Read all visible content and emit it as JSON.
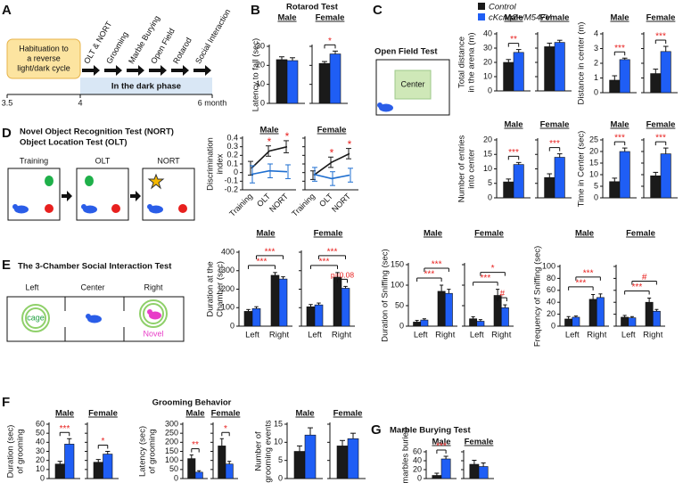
{
  "legend": {
    "series": [
      {
        "name": "Control",
        "color": "#1a1a1a"
      },
      {
        "name": "cKcnq2+/M547V",
        "color": "#1f5ef5"
      }
    ]
  },
  "diagrams": {
    "A": {
      "letter": "A",
      "habituation": [
        "Habituation to",
        "a reverse",
        "light/dark cycle"
      ],
      "tests": [
        "OLT & NORT",
        "Grooming",
        "Marble Burying",
        "Open Field",
        "Rotarod",
        "Social Interaction"
      ],
      "phase": "In the dark phase",
      "timeline": [
        "3.5",
        "4",
        "6 month"
      ]
    },
    "B": {
      "letter": "B"
    },
    "C": {
      "letter": "C",
      "title": "Open Field Test",
      "zone": "Center"
    },
    "D": {
      "letter": "D",
      "title": [
        "Novel Object Recognition Test (NORT)",
        "Object Location Test (OLT)"
      ],
      "stages": [
        "Training",
        "OLT",
        "NORT"
      ]
    },
    "E": {
      "letter": "E",
      "title": "The 3-Chamber Social Interaction Test",
      "chambers": [
        "Left",
        "Center",
        "Right"
      ],
      "cage": "cage",
      "novel": "Novel"
    },
    "F": {
      "letter": "F",
      "title": "Grooming Behavior"
    },
    "G": {
      "letter": "G"
    }
  },
  "chart_data": [
    {
      "type": "bar",
      "title": "Rotarod Test",
      "y_label": [
        "Latency to fall (sec)"
      ],
      "ylim": [
        0,
        30
      ],
      "yticks": [
        0,
        10,
        20,
        30
      ],
      "facets": [
        {
          "label": "Male",
          "series": [
            {
              "values": [
                23
              ],
              "errors": [
                1.5
              ]
            },
            {
              "values": [
                22.5
              ],
              "errors": [
                1.5
              ]
            }
          ],
          "annotations": []
        },
        {
          "label": "Female",
          "series": [
            {
              "values": [
                21
              ],
              "errors": [
                1
              ]
            },
            {
              "values": [
                26
              ],
              "errors": [
                1.5
              ]
            }
          ],
          "annotations": [
            "*"
          ]
        }
      ]
    },
    {
      "type": "bar",
      "y_label": [
        "Total distance",
        "in the arena (m)"
      ],
      "ylim": [
        0,
        40
      ],
      "yticks": [
        0,
        10,
        20,
        30,
        40
      ],
      "facets": [
        {
          "label": "Male",
          "series": [
            {
              "values": [
                20
              ],
              "errors": [
                2
              ]
            },
            {
              "values": [
                27
              ],
              "errors": [
                2
              ]
            }
          ],
          "annotations": [
            "**"
          ]
        },
        {
          "label": "Female",
          "series": [
            {
              "values": [
                31
              ],
              "errors": [
                2.5
              ]
            },
            {
              "values": [
                34
              ],
              "errors": [
                1.5
              ]
            }
          ],
          "annotations": []
        }
      ]
    },
    {
      "type": "bar",
      "y_label": [
        "Distance in center (m)"
      ],
      "ylim": [
        0,
        4
      ],
      "yticks": [
        0,
        1,
        2,
        3,
        4
      ],
      "facets": [
        {
          "label": "Male",
          "series": [
            {
              "values": [
                0.85
              ],
              "errors": [
                0.3
              ]
            },
            {
              "values": [
                2.25
              ],
              "errors": [
                0.1
              ]
            }
          ],
          "annotations": [
            "***"
          ]
        },
        {
          "label": "Female",
          "series": [
            {
              "values": [
                1.3
              ],
              "errors": [
                0.3
              ]
            },
            {
              "values": [
                2.8
              ],
              "errors": [
                0.35
              ]
            }
          ],
          "annotations": [
            "***"
          ]
        }
      ]
    },
    {
      "type": "bar",
      "y_label": [
        "Number of entries",
        "into center"
      ],
      "ylim": [
        0,
        20
      ],
      "yticks": [
        0,
        5,
        10,
        15,
        20
      ],
      "facets": [
        {
          "label": "Male",
          "series": [
            {
              "values": [
                5.5
              ],
              "errors": [
                1
              ]
            },
            {
              "values": [
                11.5
              ],
              "errors": [
                0.7
              ]
            }
          ],
          "annotations": [
            "***"
          ]
        },
        {
          "label": "Female",
          "series": [
            {
              "values": [
                7
              ],
              "errors": [
                1.3
              ]
            },
            {
              "values": [
                14
              ],
              "errors": [
                1.2
              ]
            }
          ],
          "annotations": [
            "***"
          ]
        }
      ]
    },
    {
      "type": "bar",
      "y_label": [
        "Time in Center (sec)"
      ],
      "ylim": [
        0,
        25
      ],
      "yticks": [
        0,
        5,
        10,
        15,
        20,
        25
      ],
      "facets": [
        {
          "label": "Male",
          "series": [
            {
              "values": [
                7
              ],
              "errors": [
                1.5
              ]
            },
            {
              "values": [
                20
              ],
              "errors": [
                1.5
              ]
            }
          ],
          "annotations": [
            "***"
          ]
        },
        {
          "label": "Female",
          "series": [
            {
              "values": [
                9.5
              ],
              "errors": [
                1.5
              ]
            },
            {
              "values": [
                19
              ],
              "errors": [
                2.5
              ]
            }
          ],
          "annotations": [
            "***"
          ]
        }
      ]
    },
    {
      "type": "line",
      "y_label": [
        "Discrimination",
        "index"
      ],
      "ylim": [
        -0.2,
        0.4
      ],
      "yticks": [
        -0.2,
        -0.1,
        0,
        0.1,
        0.2,
        0.3,
        0.4
      ],
      "facets": [
        {
          "label": "Male",
          "categories": [
            "Training",
            "OLT",
            "NORT"
          ],
          "series": [
            {
              "values": [
                0.05,
                0.25,
                0.3
              ],
              "errors": [
                0.08,
                0.06,
                0.07
              ]
            },
            {
              "values": [
                -0.02,
                0.02,
                0.01
              ],
              "errors": [
                0.1,
                0.08,
                0.08
              ]
            }
          ],
          "annotations": [
            "*",
            "*"
          ]
        },
        {
          "label": "Female",
          "categories": [
            "Training",
            "OLT",
            "NORT"
          ],
          "series": [
            {
              "values": [
                -0.03,
                0.12,
                0.22
              ],
              "errors": [
                0.05,
                0.06,
                0.06
              ]
            },
            {
              "values": [
                -0.02,
                -0.07,
                -0.03
              ],
              "errors": [
                0.08,
                0.08,
                0.08
              ]
            }
          ],
          "annotations": [
            "*",
            "*"
          ]
        }
      ]
    },
    {
      "type": "bar",
      "y_label": [
        "Duration at the",
        "Chamber (sec)"
      ],
      "ylim": [
        0,
        400
      ],
      "yticks": [
        0,
        100,
        200,
        300,
        400
      ],
      "facets": [
        {
          "label": "Male",
          "categories": [
            "Left",
            "Right"
          ],
          "series": [
            {
              "values": [
                80,
                275
              ],
              "errors": [
                10,
                15
              ]
            },
            {
              "values": [
                95,
                255
              ],
              "errors": [
                10,
                12
              ]
            }
          ],
          "annotations": [
            "***",
            "***"
          ]
        },
        {
          "label": "Female",
          "categories": [
            "Left",
            "Right"
          ],
          "series": [
            {
              "values": [
                105,
                265
              ],
              "errors": [
                12,
                25
              ]
            },
            {
              "values": [
                115,
                205
              ],
              "errors": [
                10,
                10
              ]
            }
          ],
          "annotations": [
            "***",
            "***",
            "p=0.08"
          ]
        }
      ]
    },
    {
      "type": "bar",
      "y_label": [
        "Duration of Sniffing (sec)"
      ],
      "ylim": [
        0,
        150
      ],
      "yticks": [
        0,
        50,
        100,
        150
      ],
      "facets": [
        {
          "label": "Male",
          "categories": [
            "Left",
            "Right"
          ],
          "series": [
            {
              "values": [
                10,
                85
              ],
              "errors": [
                4,
                15
              ]
            },
            {
              "values": [
                15,
                80
              ],
              "errors": [
                3,
                10
              ]
            }
          ],
          "annotations": [
            "***",
            "***"
          ]
        },
        {
          "label": "Female",
          "categories": [
            "Left",
            "Right"
          ],
          "series": [
            {
              "values": [
                18,
                75
              ],
              "errors": [
                5,
                15
              ]
            },
            {
              "values": [
                12,
                45
              ],
              "errors": [
                4,
                7
              ]
            }
          ],
          "annotations": [
            "***",
            "*",
            "#"
          ]
        }
      ]
    },
    {
      "type": "bar",
      "y_label": [
        "Frequency of Sniffing (sec)"
      ],
      "ylim": [
        0,
        100
      ],
      "yticks": [
        0,
        20,
        40,
        60,
        80,
        100
      ],
      "facets": [
        {
          "label": "Male",
          "categories": [
            "Left",
            "Right"
          ],
          "series": [
            {
              "values": [
                12,
                45
              ],
              "errors": [
                4,
                8
              ]
            },
            {
              "values": [
                15,
                48
              ],
              "errors": [
                2,
                6
              ]
            }
          ],
          "annotations": [
            "***",
            "***"
          ]
        },
        {
          "label": "Female",
          "categories": [
            "Left",
            "Right"
          ],
          "series": [
            {
              "values": [
                15,
                40
              ],
              "errors": [
                3,
                7
              ]
            },
            {
              "values": [
                14,
                25
              ],
              "errors": [
                2,
                3
              ]
            }
          ],
          "annotations": [
            "***",
            "#"
          ]
        }
      ]
    },
    {
      "type": "bar",
      "y_label": [
        "Duration (sec)",
        "of grooming"
      ],
      "ylim": [
        0,
        60
      ],
      "yticks": [
        0,
        10,
        20,
        30,
        40,
        50,
        60
      ],
      "facets": [
        {
          "label": "Male",
          "series": [
            {
              "values": [
                16
              ],
              "errors": [
                3
              ]
            },
            {
              "values": [
                38
              ],
              "errors": [
                6
              ]
            }
          ],
          "annotations": [
            "***"
          ]
        },
        {
          "label": "Female",
          "series": [
            {
              "values": [
                18
              ],
              "errors": [
                3
              ]
            },
            {
              "values": [
                27
              ],
              "errors": [
                3
              ]
            }
          ],
          "annotations": [
            "*"
          ]
        }
      ]
    },
    {
      "type": "bar",
      "y_label": [
        "Latency (sec)",
        "of grooming"
      ],
      "ylim": [
        0,
        300
      ],
      "yticks": [
        0,
        50,
        100,
        150,
        200,
        250,
        300
      ],
      "facets": [
        {
          "label": "Male",
          "series": [
            {
              "values": [
                110
              ],
              "errors": [
                20
              ]
            },
            {
              "values": [
                35
              ],
              "errors": [
                8
              ]
            }
          ],
          "annotations": [
            "**"
          ]
        },
        {
          "label": "Female",
          "series": [
            {
              "values": [
                180
              ],
              "errors": [
                40
              ]
            },
            {
              "values": [
                80
              ],
              "errors": [
                15
              ]
            }
          ],
          "annotations": [
            "*"
          ]
        }
      ]
    },
    {
      "type": "bar",
      "y_label": [
        "Number of",
        "grooming events"
      ],
      "ylim": [
        0,
        15
      ],
      "yticks": [
        0,
        5,
        10,
        15
      ],
      "facets": [
        {
          "label": "Male",
          "series": [
            {
              "values": [
                7.5
              ],
              "errors": [
                1.5
              ]
            },
            {
              "values": [
                12
              ],
              "errors": [
                2
              ]
            }
          ],
          "annotations": []
        },
        {
          "label": "Female",
          "series": [
            {
              "values": [
                9
              ],
              "errors": [
                1.5
              ]
            },
            {
              "values": [
                11
              ],
              "errors": [
                1.5
              ]
            }
          ],
          "annotations": []
        }
      ]
    },
    {
      "type": "bar",
      "title": "Marble Burying Test",
      "y_label": [
        "% of marbles buried"
      ],
      "ylim": [
        0,
        60
      ],
      "yticks": [
        0,
        20,
        40,
        60
      ],
      "facets": [
        {
          "label": "Male",
          "series": [
            {
              "values": [
                7
              ],
              "errors": [
                5
              ]
            },
            {
              "values": [
                44
              ],
              "errors": [
                6
              ]
            }
          ],
          "annotations": [
            "***"
          ]
        },
        {
          "label": "Female",
          "series": [
            {
              "values": [
                32
              ],
              "errors": [
                9
              ]
            },
            {
              "values": [
                27
              ],
              "errors": [
                8
              ]
            }
          ],
          "annotations": []
        }
      ]
    }
  ]
}
